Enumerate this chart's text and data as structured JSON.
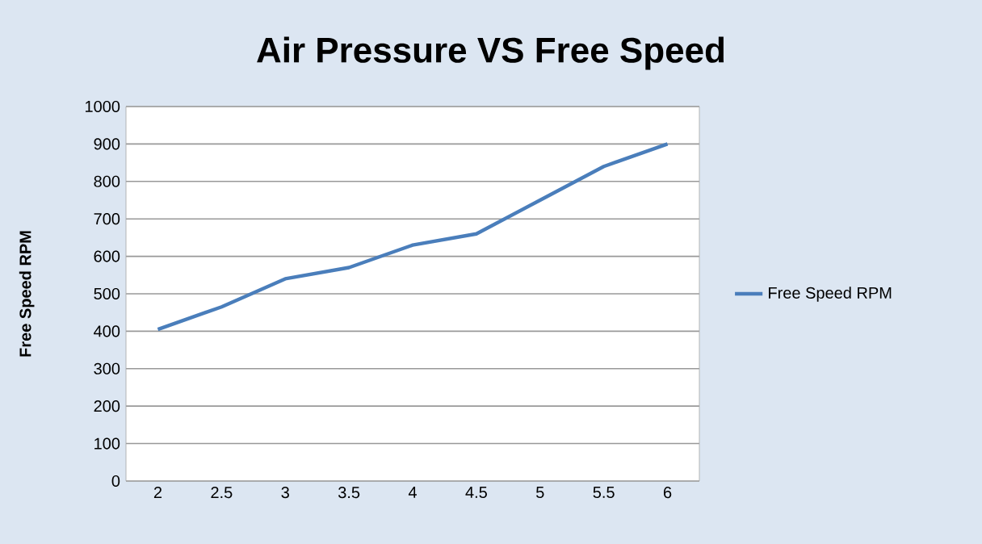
{
  "chart_data": {
    "type": "line",
    "title": "Air Pressure VS Free Speed",
    "ylabel": "Free Speed RPM",
    "categories": [
      "2",
      "2.5",
      "3",
      "3.5",
      "4",
      "4.5",
      "5",
      "5.5",
      "6"
    ],
    "series": [
      {
        "name": "Free Speed RPM",
        "color": "#4a7ebb",
        "values": [
          405,
          465,
          540,
          570,
          630,
          660,
          750,
          840,
          900
        ]
      }
    ],
    "ylim": [
      0,
      1000
    ],
    "yticks": [
      0,
      100,
      200,
      300,
      400,
      500,
      600,
      700,
      800,
      900,
      1000
    ],
    "grid": "y",
    "legend": "right",
    "marker": "none"
  }
}
